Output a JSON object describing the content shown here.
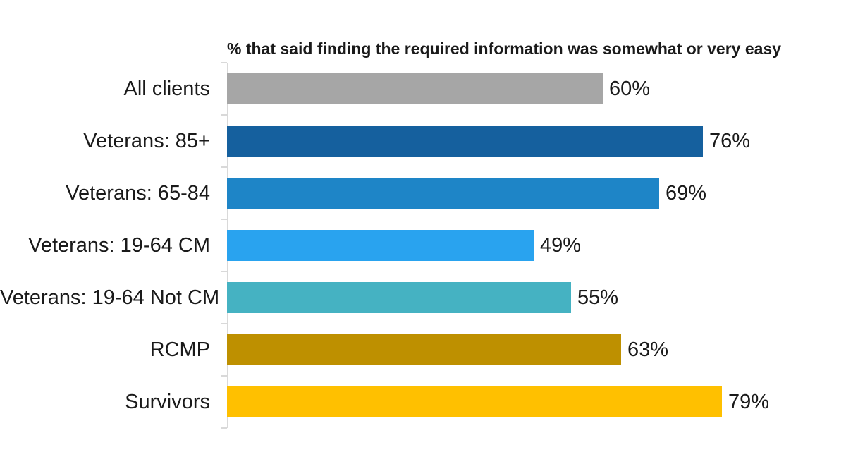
{
  "chart_data": {
    "type": "bar",
    "orientation": "horizontal",
    "title": "% that said finding the required information was somewhat or very easy",
    "categories": [
      "All clients",
      "Veterans: 85+",
      "Veterans: 65-84",
      "Veterans: 19-64 CM",
      "Veterans: 19-64 Not CM",
      "RCMP",
      "Survivors"
    ],
    "values": [
      60,
      76,
      69,
      49,
      55,
      63,
      79
    ],
    "value_labels": [
      "60%",
      "76%",
      "69%",
      "49%",
      "55%",
      "63%",
      "79%"
    ],
    "bar_colors": [
      "#A6A6A6",
      "#15609E",
      "#1E85C7",
      "#29A3EF",
      "#45B2C2",
      "#BE9000",
      "#FFC000"
    ],
    "xlabel": "",
    "ylabel": "",
    "xlim": [
      0,
      84.5
    ],
    "grid": false,
    "legend": "none",
    "axis_line_color": "#D9D9D9",
    "text_color": "#1A1A1A"
  }
}
